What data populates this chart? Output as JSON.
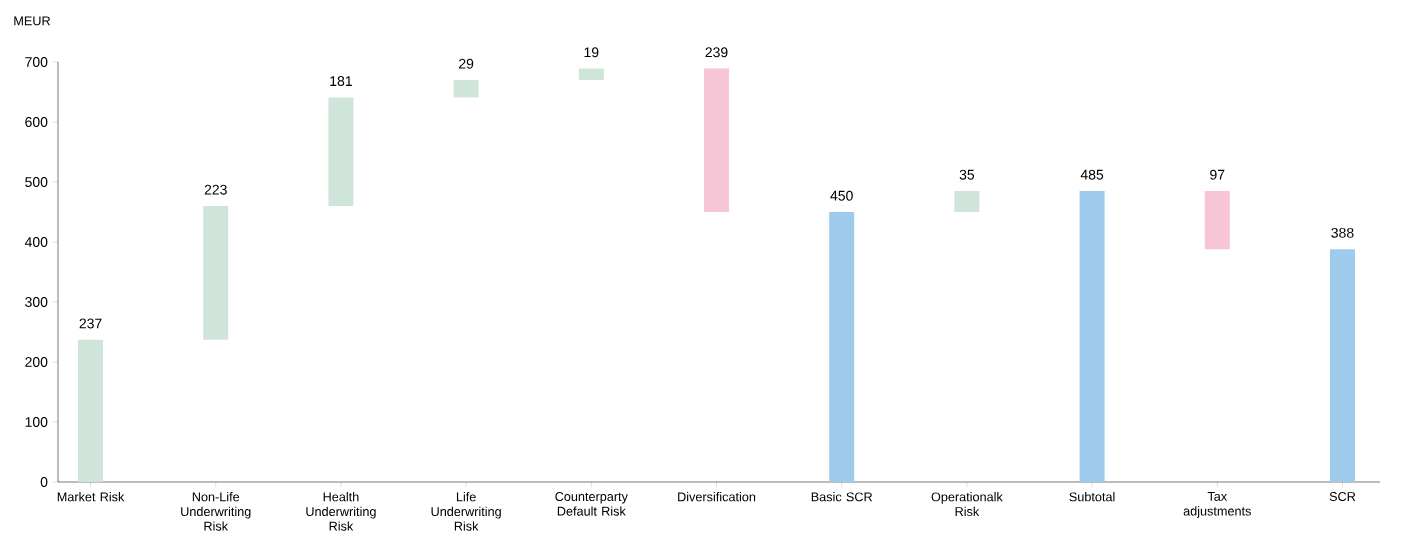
{
  "chart_data": {
    "type": "bar",
    "ylabel": "MEUR",
    "categories": [
      "Market Risk",
      "Non-Life Underwriting Risk",
      "Health Underwriting Risk",
      "Life Underwriting Risk",
      "Counterparty Default Risk",
      "Diversification",
      "Basic SCR",
      "Operationalk Risk",
      "Subtotal",
      "Tax adjustments",
      "SCR"
    ],
    "values": [
      237,
      223,
      181,
      29,
      19,
      -239,
      450,
      35,
      485,
      -97,
      388
    ],
    "base": [
      0,
      237,
      460,
      641,
      670,
      689,
      0,
      450,
      0,
      485,
      0
    ],
    "colors": [
      "#d0e5da",
      "#d0e5da",
      "#d0e5da",
      "#d0e5da",
      "#d0e5da",
      "#f7c6d6",
      "#9ecbec",
      "#d0e5da",
      "#9ecbec",
      "#f7c6d6",
      "#9ecbec"
    ],
    "value_labels": [
      "237",
      "223",
      "181",
      "29",
      "19",
      "239",
      "450",
      "35",
      "485",
      "97",
      "388"
    ],
    "ylim": [
      0,
      700
    ],
    "yticks": [
      0,
      100,
      200,
      300,
      400,
      500,
      600,
      700
    ],
    "grid": false
  }
}
